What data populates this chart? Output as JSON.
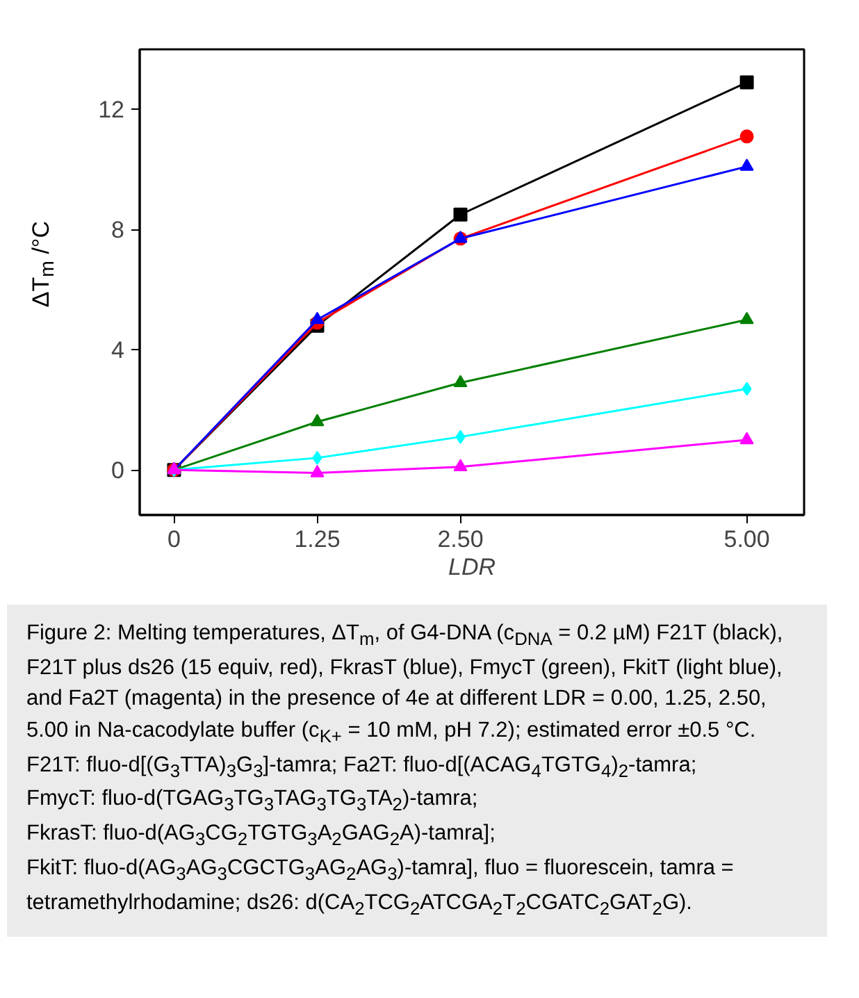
{
  "chart_data": {
    "type": "line",
    "xlabel": "LDR",
    "ylabel": "ΔT$_{m}$ /°C",
    "x": [
      0,
      1.25,
      2.5,
      5
    ],
    "xlim": [
      -0.3,
      5.5
    ],
    "xticks": [
      0,
      1.25,
      {
        "value": 2.5,
        "label": "2.50"
      },
      {
        "value": 5,
        "label": "5.00"
      }
    ],
    "ylim": [
      -1.5,
      14
    ],
    "yticks": [
      0,
      4,
      8,
      12
    ],
    "grid": false,
    "line_style": "solid",
    "series": [
      {
        "color": "#000000",
        "marker": "square",
        "values": [
          0,
          4.8,
          8.5,
          12.9
        ]
      },
      {
        "color": "#ff0000",
        "marker": "circle",
        "values": [
          0,
          4.9,
          7.7,
          11.1
        ]
      },
      {
        "color": "#0000ff",
        "marker": "triangle",
        "values": [
          0,
          5.0,
          7.7,
          10.1
        ]
      },
      {
        "color": "#008000",
        "marker": "triangle",
        "values": [
          0,
          1.6,
          2.9,
          5.0
        ]
      },
      {
        "color": "#00ffff",
        "marker": "diamond",
        "values": [
          0,
          0.4,
          1.1,
          2.7
        ]
      },
      {
        "color": "#ff00ff",
        "marker": "triangle",
        "values": [
          0,
          -0.1,
          0.1,
          1.0
        ]
      }
    ],
    "annotations": [
      "Figure 2: Melting temperatures, ΔT$_{m}$, of G4-DNA (c$_{DNA}$ = 0.2 µM) F21T (black), F21T plus ds26 (15 equiv, red), FkrasT (blue), FmycT (green), FkitT (light blue), and Fa2T (magenta) in the presence of 4e at different LDR = 0.00, 1.25, 2.50, 5.00 in Na-cacodylate buffer (c$_{K+}$ = 10 mM, pH 7.2); estimated error ±0.5 °C.",
      "F21T: fluo-d[(G$_{3}$TTA)$_{3}$G$_{3}$]-tamra; Fa2T: fluo-d[(ACAG$_{4}$TGTG$_{4}$)$_{2}$-tamra;",
      "FmycT: fluo-d(TGAG$_{3}$TG$_{3}$TAG$_{3}$TG$_{3}$TA$_{2}$)-tamra;",
      "FkrasT: fluo-d(AG$_{3}$CG$_{2}$TGTG$_{3}$A$_{2}$GAG$_{2}$A)-tamra];",
      "FkitT: fluo-d(AG$_{3}$AG$_{3}$CGCTG$_{3}$AG$_{2}$AG$_{3}$)-tamra], fluo = fluorescein, tamra = tetramethylrhodamine; ds26: d(CA$_{2}$TCG$_{2}$ATCGA$_{2}$T$_{2}$CGATC$_{2}$GAT$_{2}$G)."
    ]
  }
}
